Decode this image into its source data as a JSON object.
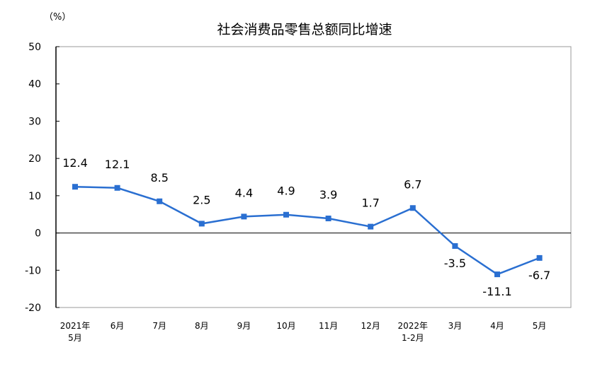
{
  "chart_data": {
    "type": "line",
    "title": "社会消费品零售总额同比增速",
    "ylabel": "（%）",
    "categories": [
      [
        "2021年",
        "5月"
      ],
      [
        "6月"
      ],
      [
        "7月"
      ],
      [
        "8月"
      ],
      [
        "9月"
      ],
      [
        "10月"
      ],
      [
        "11月"
      ],
      [
        "12月"
      ],
      [
        "2022年",
        "1-2月"
      ],
      [
        "3月"
      ],
      [
        "4月"
      ],
      [
        "5月"
      ]
    ],
    "values": [
      12.4,
      12.1,
      8.5,
      2.5,
      4.4,
      4.9,
      3.9,
      1.7,
      6.7,
      -3.5,
      -11.1,
      -6.7
    ],
    "data_labels": [
      "12.4",
      "12.1",
      "8.5",
      "2.5",
      "4.4",
      "4.9",
      "3.9",
      "1.7",
      "6.7",
      "-3.5",
      "-11.1",
      "-6.7"
    ],
    "ylim": [
      -20,
      50
    ],
    "yticks": [
      "50",
      "40",
      "30",
      "20",
      "10",
      "0",
      "-10",
      "-20"
    ],
    "grid": false,
    "line_color": "#2a6fd1"
  }
}
